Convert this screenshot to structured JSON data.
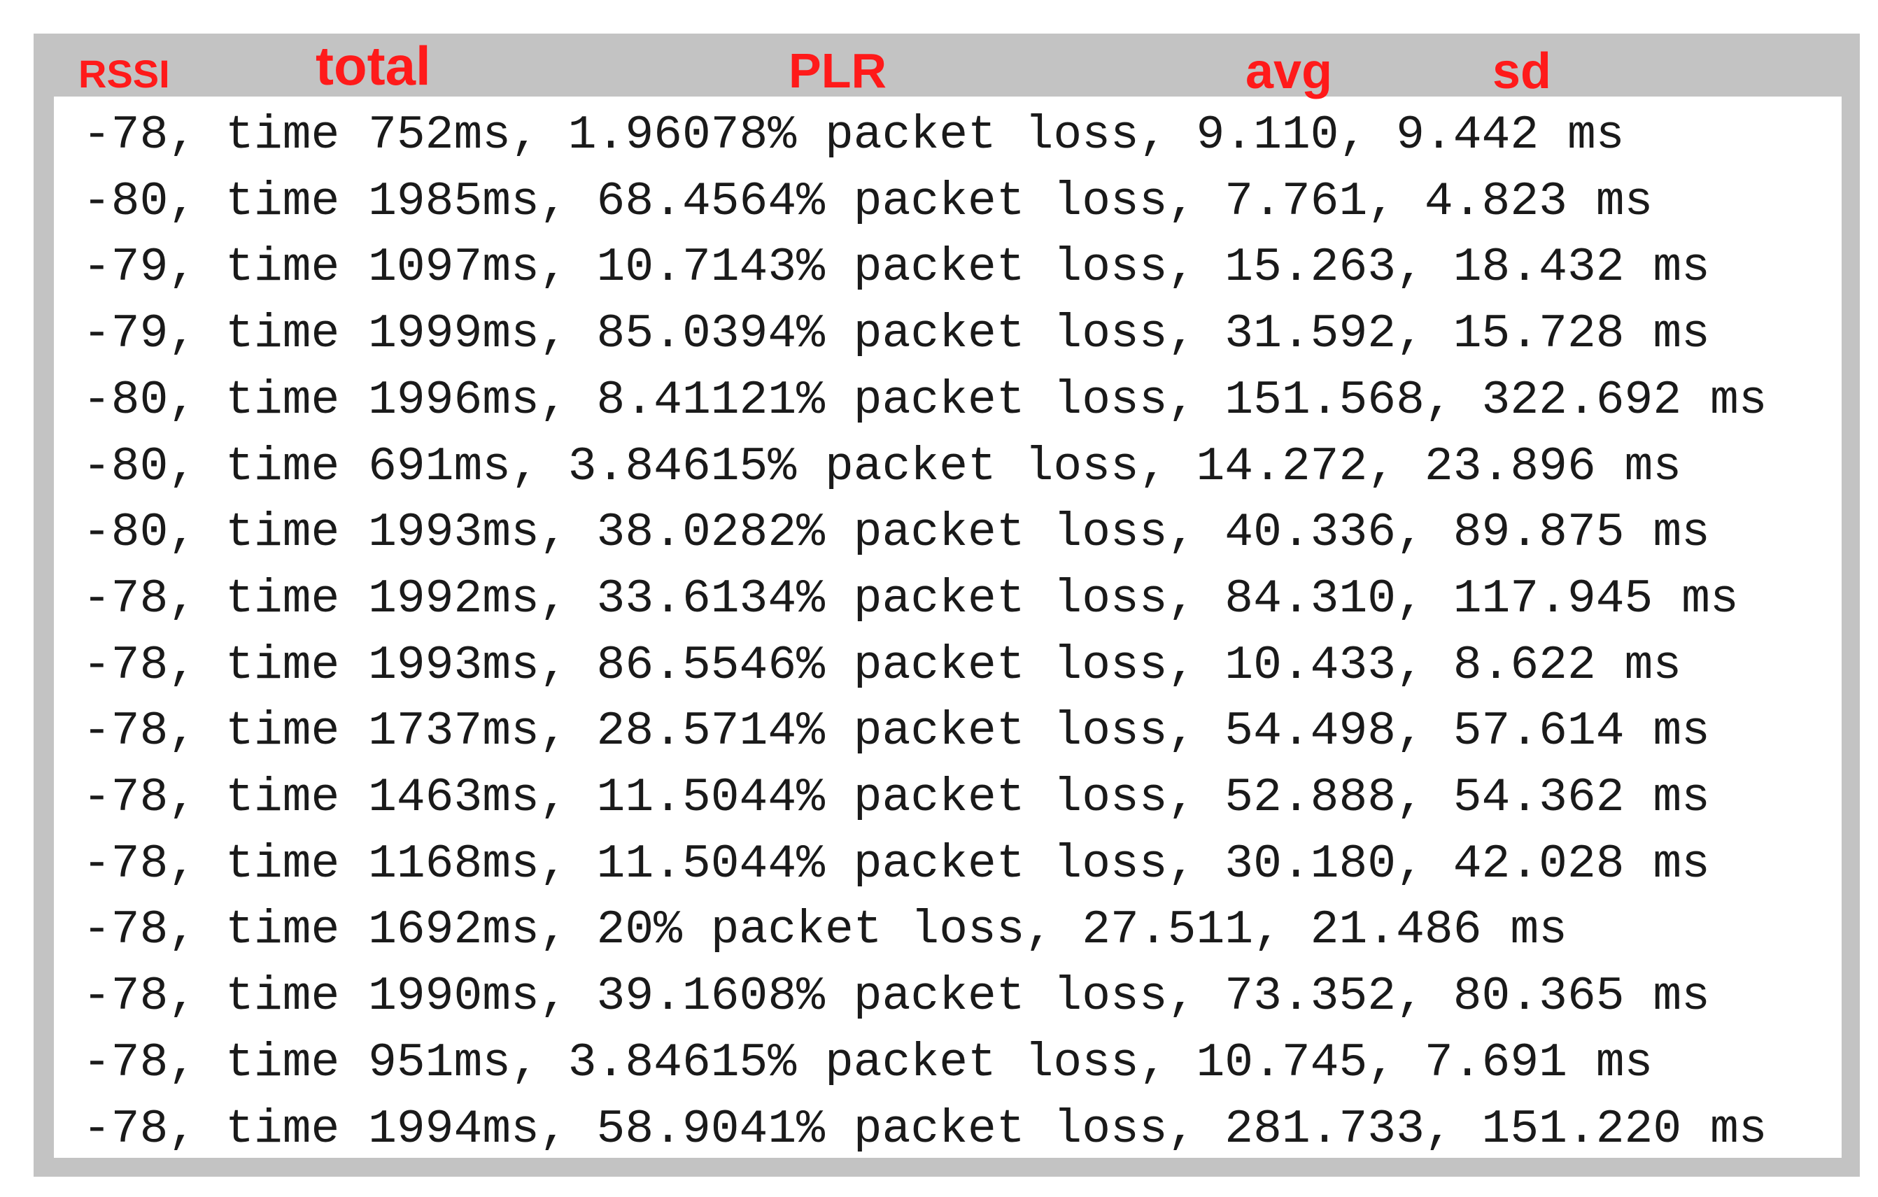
{
  "header": {
    "labels": [
      "RSSI",
      "total",
      "PLR",
      "avg",
      "sd"
    ]
  },
  "rows": [
    "-78, time 752ms, 1.96078% packet loss, 9.110, 9.442 ms",
    "-80, time 1985ms, 68.4564% packet loss, 7.761, 4.823 ms",
    "-79, time 1097ms, 10.7143% packet loss, 15.263, 18.432 ms",
    "-79, time 1999ms, 85.0394% packet loss, 31.592, 15.728 ms",
    "-80, time 1996ms, 8.41121% packet loss, 151.568, 322.692 ms",
    "-80, time 691ms, 3.84615% packet loss, 14.272, 23.896 ms",
    "-80, time 1993ms, 38.0282% packet loss, 40.336, 89.875 ms",
    "-78, time 1992ms, 33.6134% packet loss, 84.310, 117.945 ms",
    "-78, time 1993ms, 86.5546% packet loss, 10.433, 8.622 ms",
    "-78, time 1737ms, 28.5714% packet loss, 54.498, 57.614 ms",
    "-78, time 1463ms, 11.5044% packet loss, 52.888, 54.362 ms",
    "-78, time 1168ms, 11.5044% packet loss, 30.180, 42.028 ms",
    "-78, time 1692ms, 20% packet loss, 27.511, 21.486 ms",
    "-78, time 1990ms, 39.1608% packet loss, 73.352, 80.365 ms",
    "-78, time 951ms, 3.84615% packet loss, 10.745, 7.691 ms",
    "-78, time 1994ms, 58.9041% packet loss, 281.733, 151.220 ms"
  ]
}
